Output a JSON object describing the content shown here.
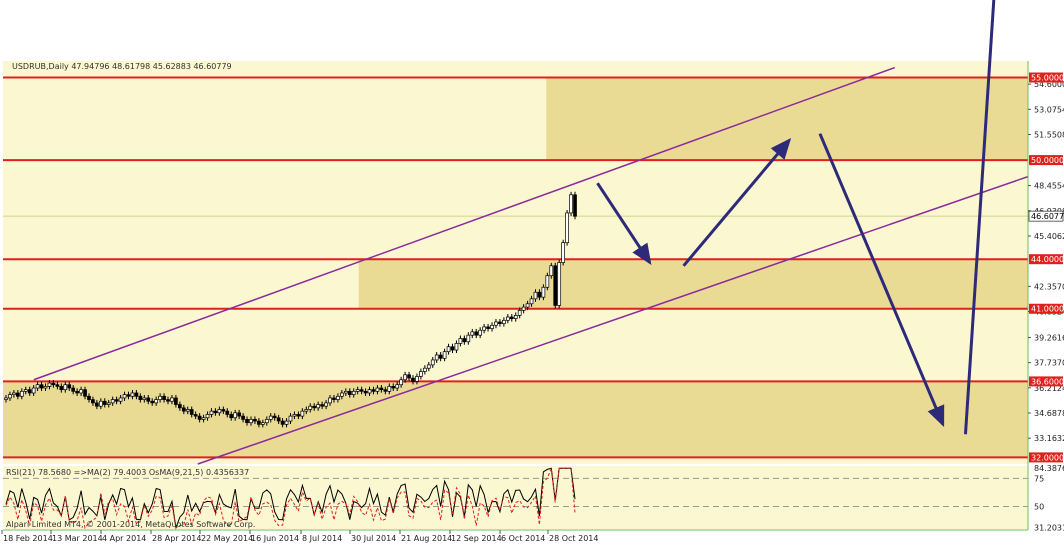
{
  "chart_data": {
    "type": "candlestick",
    "symbol_header": "USDRUB,Daily  47.94796 48.61798 45.62883 46.60779",
    "footer_text": "Alpari Limited MT4, © 2001-2014, MetaQuotes Software Corp.",
    "ylim": [
      31.6,
      56.0
    ],
    "y_ticks": [
      "54.60000",
      "53.07540",
      "51.55080",
      "48.45540",
      "46.93080",
      "45.40620",
      "42.35700",
      "40.83240",
      "39.26160",
      "37.73700",
      "36.21240",
      "34.68780",
      "33.16320"
    ],
    "x_ticks": [
      "18 Feb 2014",
      "13 Mar 2014",
      "4 Apr 2014",
      "28 Apr 2014",
      "22 May 2014",
      "16 Jun 2014",
      "8 Jul 2014",
      "30 Jul 2014",
      "21 Aug 2014",
      "12 Sep 2014",
      "6 Oct 2014",
      "28 Oct 2014"
    ],
    "levels": [
      {
        "label": "55.00000",
        "value": 55.0
      },
      {
        "label": "50.00000",
        "value": 50.0
      },
      {
        "label": "44.00000",
        "value": 44.0
      },
      {
        "label": "41.00000",
        "value": 41.0
      },
      {
        "label": "36.60000",
        "value": 36.6
      },
      {
        "label": "32.00000",
        "value": 32.0
      }
    ],
    "current_price": {
      "label": "46.60779",
      "value": 46.60779
    },
    "zones": [
      {
        "from_x": 0.0,
        "to_x": 1.0,
        "low": 32.0,
        "high": 36.6
      },
      {
        "from_x": 0.347,
        "to_x": 1.0,
        "low": 41.0,
        "high": 44.0
      },
      {
        "from_x": 0.53,
        "to_x": 1.0,
        "low": 50.0,
        "high": 55.0
      }
    ],
    "channel": [
      {
        "name": "upper",
        "x1": 0.03,
        "y1": 36.7,
        "x2": 0.87,
        "y2": 55.6
      },
      {
        "name": "lower",
        "x1": 0.19,
        "y1": 31.6,
        "x2": 1.0,
        "y2": 49.0
      }
    ],
    "closes": [
      35.6,
      35.8,
      35.9,
      35.7,
      36.0,
      36.1,
      35.9,
      36.2,
      36.4,
      36.2,
      36.3,
      36.5,
      36.4,
      36.3,
      36.1,
      36.4,
      36.2,
      36.0,
      35.9,
      36.1,
      35.7,
      35.5,
      35.3,
      35.1,
      35.4,
      35.2,
      35.3,
      35.5,
      35.4,
      35.6,
      35.8,
      35.7,
      35.9,
      35.7,
      35.5,
      35.6,
      35.4,
      35.3,
      35.5,
      35.7,
      35.5,
      35.4,
      35.6,
      35.2,
      35.0,
      34.8,
      34.9,
      34.6,
      34.5,
      34.3,
      34.4,
      34.6,
      34.8,
      34.7,
      34.9,
      34.8,
      34.6,
      34.4,
      34.7,
      34.5,
      34.3,
      34.1,
      34.3,
      34.2,
      34.0,
      34.1,
      34.3,
      34.5,
      34.4,
      34.2,
      34.0,
      34.2,
      34.5,
      34.6,
      34.5,
      34.8,
      34.9,
      35.1,
      35.0,
      35.2,
      35.1,
      35.3,
      35.6,
      35.5,
      35.7,
      35.9,
      36.0,
      35.8,
      36.0,
      36.1,
      36.0,
      35.9,
      36.1,
      36.0,
      36.2,
      36.1,
      36.0,
      36.3,
      36.2,
      36.4,
      36.7,
      37.0,
      36.8,
      36.6,
      36.9,
      37.2,
      37.4,
      37.6,
      37.9,
      38.2,
      38.0,
      38.4,
      38.7,
      38.5,
      38.9,
      39.2,
      39.0,
      39.4,
      39.6,
      39.4,
      39.7,
      39.9,
      39.8,
      40.0,
      40.2,
      40.1,
      40.3,
      40.5,
      40.4,
      40.6,
      40.9,
      41.1,
      41.3,
      41.6,
      42.0,
      41.7,
      42.3,
      43.0,
      43.6,
      41.2,
      43.8,
      45.0,
      46.8,
      47.9,
      46.6
    ],
    "rsi": {
      "label": "RSI(21) 78.5680  =>MA(2) 79.4003  OsMA(9,21,5) 0.4356337",
      "ylim": [
        30.0,
        86.0
      ],
      "y_ticks": [
        "84.3876",
        "75",
        "50",
        "31.2031"
      ]
    }
  }
}
